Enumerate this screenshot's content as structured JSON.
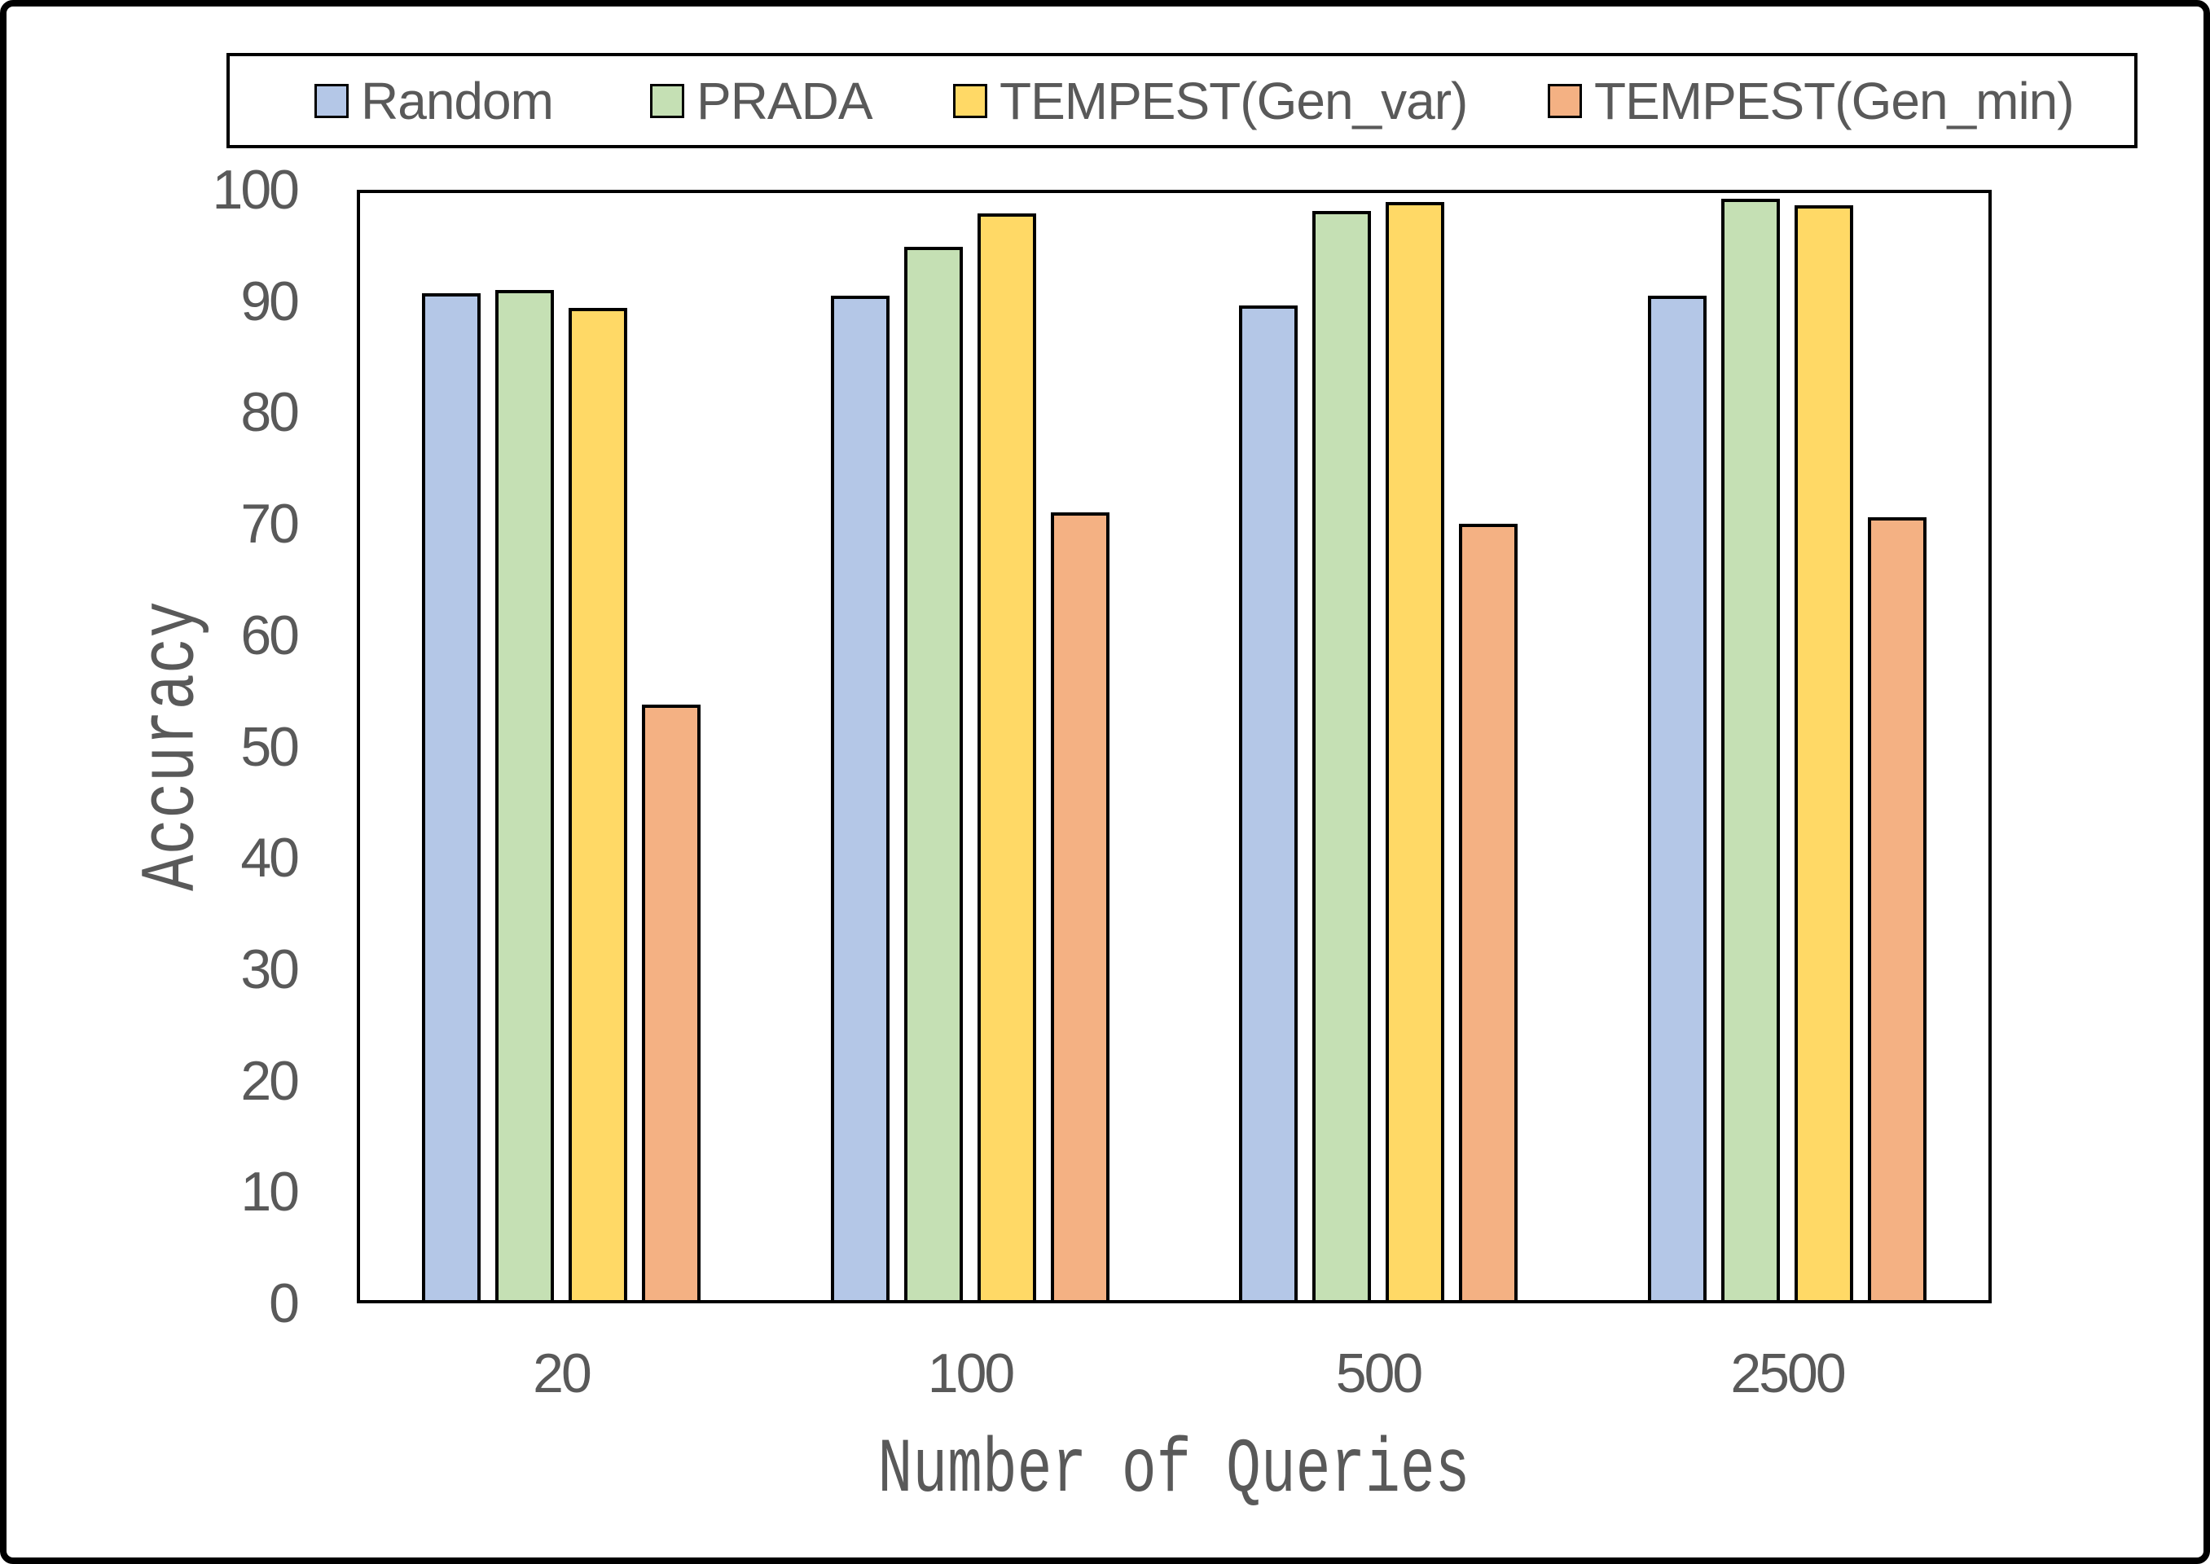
{
  "chart_data": {
    "type": "bar",
    "title": "",
    "xlabel": "Number of Queries",
    "ylabel": "Accuracy",
    "categories": [
      "20",
      "100",
      "500",
      "2500"
    ],
    "series": [
      {
        "name": "Random",
        "color": "#B4C7E7",
        "values": [
          90.7,
          90.5,
          89.6,
          90.5
        ]
      },
      {
        "name": "PRADA",
        "color": "#C5E0B4",
        "values": [
          91.0,
          94.9,
          98.1,
          99.2
        ]
      },
      {
        "name": "TEMPEST(Gen_var)",
        "color": "#FFD966",
        "values": [
          89.4,
          97.9,
          98.9,
          98.6
        ]
      },
      {
        "name": "TEMPEST(Gen_min)",
        "color": "#F4B183",
        "values": [
          53.8,
          71.0,
          70.0,
          70.6
        ]
      }
    ],
    "yticks": [
      0,
      10,
      20,
      30,
      40,
      50,
      60,
      70,
      80,
      90,
      100
    ],
    "ylim": [
      0,
      100
    ],
    "ytick_step": 10,
    "grid": false,
    "legend_position": "top",
    "bar_border_color": "#000000",
    "text_color": "#595959",
    "frame_color": "#000000"
  }
}
